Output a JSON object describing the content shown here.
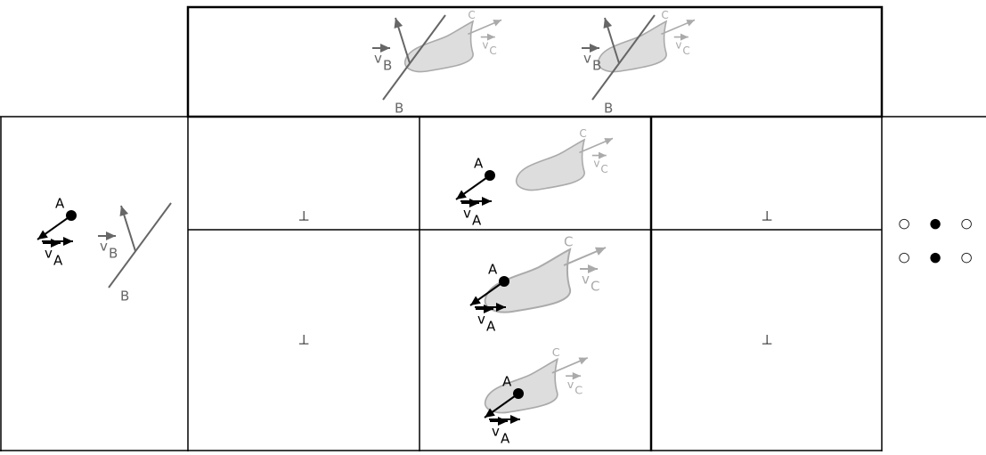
{
  "top_row": {
    "figures": [
      {
        "line": {
          "label": "B",
          "velocity": {
            "symbol": "v",
            "subscript": "B"
          }
        },
        "shape": {
          "label": "C",
          "velocity": {
            "symbol": "v",
            "subscript": "C"
          }
        }
      },
      {
        "line": {
          "label": "B",
          "velocity": {
            "symbol": "v",
            "subscript": "B"
          }
        },
        "shape": {
          "label": "C",
          "velocity": {
            "symbol": "v",
            "subscript": "C"
          }
        }
      }
    ]
  },
  "left_column": {
    "point": {
      "label": "A",
      "velocity": {
        "symbol": "v",
        "subscript": "A"
      }
    },
    "line": {
      "label": "B",
      "velocity": {
        "symbol": "v",
        "subscript": "B"
      }
    }
  },
  "grid": {
    "rows": [
      {
        "cells": [
          {
            "text": "⊥"
          },
          {
            "figures": [
              {
                "point": {
                  "label": "A",
                  "velocity": {
                    "symbol": "v",
                    "subscript": "A"
                  }
                },
                "shape": {
                  "label": "C",
                  "velocity": {
                    "symbol": "v",
                    "subscript": "C"
                  }
                }
              }
            ]
          },
          {
            "text": "⊥"
          }
        ]
      },
      {
        "cells": [
          {
            "text": "⊥"
          },
          {
            "figures": [
              {
                "point": {
                  "label": "A",
                  "velocity": {
                    "symbol": "v",
                    "subscript": "A"
                  }
                },
                "shape": {
                  "label": "C",
                  "velocity": {
                    "symbol": "v",
                    "subscript": "C"
                  }
                }
              },
              {
                "point": {
                  "label": "A",
                  "velocity": {
                    "symbol": "v",
                    "subscript": "A"
                  }
                },
                "shape": {
                  "label": "C",
                  "velocity": {
                    "symbol": "v",
                    "subscript": "C"
                  }
                }
              }
            ]
          },
          {
            "text": "⊥"
          }
        ]
      }
    ]
  },
  "right_column": {
    "rows": [
      [
        "○",
        "●",
        "○"
      ],
      [
        "○",
        "●",
        "○"
      ]
    ]
  }
}
